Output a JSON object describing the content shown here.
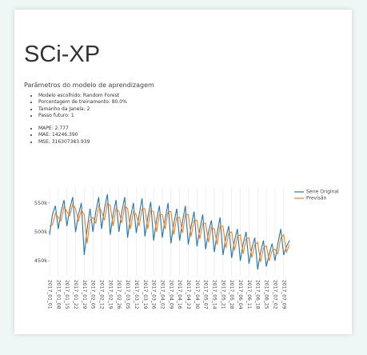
{
  "header": {
    "title": "SCi-XP",
    "subtitle": "Parâmetros do modelo de aprendizagem"
  },
  "params": [
    "Modelo escolhido: Random Forest",
    "Porcentagem de treinamento: 80.0%",
    "Tamanho da Janela: 2",
    "Passo futuro: 1"
  ],
  "metrics": [
    "MAPE: 2.777",
    "MAE: 14246.390",
    "MSE: 316307383.939"
  ],
  "chart_data": {
    "type": "line",
    "grid": true,
    "legend": "upper-right",
    "categories": [
      "2017_01_01",
      null,
      null,
      "2017_01_08",
      null,
      null,
      "2017_01_15",
      null,
      null,
      "2017_01_22",
      null,
      null,
      "2017_01_29",
      null,
      null,
      "2017_02_05",
      null,
      null,
      "2017_02_12",
      null,
      null,
      "2017_02_19",
      null,
      null,
      "2017_02_26",
      null,
      null,
      "2017_03_05",
      null,
      null,
      "2017_03_12",
      null,
      null,
      "2017_03_19",
      null,
      null,
      "2017_03_26",
      null,
      null,
      "2017_04_02",
      null,
      null,
      "2017_04_09",
      null,
      null,
      "2017_04_16",
      null,
      null,
      "2017_04_23",
      null,
      null,
      "2017_04_30",
      null,
      null,
      "2017_05_07",
      null,
      null,
      "2017_05_14",
      null,
      null,
      "2017_05_21",
      null,
      null,
      "2017_05_28",
      null,
      null,
      "2017_06_04",
      null,
      null,
      "2017_06_11",
      null,
      null,
      "2017_06_18",
      null,
      null,
      "2017_06_25",
      null,
      null,
      "2017_07_02",
      null,
      null,
      "2017_07_09",
      null,
      null
    ],
    "series": [
      {
        "name": "Série Original",
        "color": "#1f77b4",
        "values": [
          495000,
          530000,
          545000,
          505000,
          535000,
          555000,
          510000,
          540000,
          560000,
          500000,
          530000,
          550000,
          460000,
          505000,
          540000,
          500000,
          535000,
          560000,
          505000,
          540000,
          565000,
          495000,
          530000,
          555000,
          500000,
          535000,
          560000,
          490000,
          525000,
          550000,
          498000,
          530000,
          558000,
          492000,
          525000,
          552000,
          485000,
          520000,
          545000,
          490000,
          522000,
          550000,
          480000,
          515000,
          540000,
          485000,
          518000,
          545000,
          478000,
          510000,
          535000,
          475000,
          505000,
          530000,
          470000,
          500000,
          520000,
          465000,
          498000,
          525000,
          460000,
          490000,
          510000,
          455000,
          485000,
          505000,
          450000,
          480000,
          500000,
          445000,
          472000,
          490000,
          435000,
          465000,
          485000,
          440000,
          462000,
          480000,
          450000,
          480000,
          505000,
          460000,
          475000,
          485000
        ]
      },
      {
        "name": "Previsão",
        "color": "#ff7f0e",
        "values": [
          510000,
          512000,
          532000,
          525000,
          519000,
          543000,
          535000,
          528000,
          548000,
          540000,
          518000,
          538000,
          530000,
          480000,
          520000,
          525000,
          515000,
          545000,
          535000,
          520000,
          550000,
          545000,
          510000,
          540000,
          535000,
          515000,
          545000,
          540000,
          505000,
          535000,
          530000,
          510000,
          540000,
          540000,
          505000,
          538000,
          535000,
          500000,
          530000,
          530000,
          505000,
          535000,
          535000,
          495000,
          525000,
          525000,
          498000,
          530000,
          530000,
          492000,
          520000,
          520000,
          488000,
          515000,
          515000,
          482000,
          508000,
          505000,
          478000,
          510000,
          510000,
          472000,
          498000,
          500000,
          468000,
          492000,
          495000,
          462000,
          488000,
          490000,
          455000,
          478000,
          482000,
          448000,
          472000,
          476000,
          450000,
          468000,
          470000,
          462000,
          490000,
          495000,
          465000,
          478000
        ]
      }
    ],
    "ylim": [
      424000,
      576000
    ],
    "yticks": [
      {
        "value": 450000,
        "label": "450k"
      },
      {
        "value": 500000,
        "label": "500k"
      },
      {
        "value": 550000,
        "label": "550k"
      }
    ]
  }
}
